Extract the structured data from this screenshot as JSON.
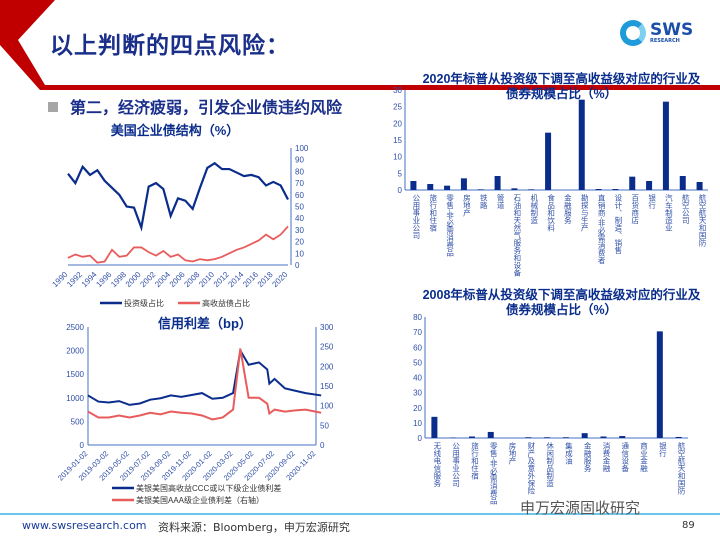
{
  "header": {
    "title": "以上判断的四点风险：",
    "logo_text": "SWS",
    "logo_sub": "RESEARCH"
  },
  "bullet": "第二，经济疲弱，引发企业债违约风险",
  "footer": {
    "url": "www.swsresearch.com",
    "source": "资料来源：Bloomberg，申万宏源研究",
    "page": "89",
    "watermark": "申万宏源固收研究"
  },
  "colors": {
    "navy": "#0a2d8c",
    "red": "#e85c5c",
    "brand_red": "#c00000"
  },
  "chart_data": [
    {
      "type": "line",
      "title": "美国企业债结构（%）",
      "ylim": [
        0,
        100
      ],
      "yticks": [
        "0",
        "10",
        "20",
        "30",
        "40",
        "50",
        "60",
        "70",
        "80",
        "90",
        "100"
      ],
      "y_axis": "right",
      "x": [
        1990,
        1991,
        1992,
        1993,
        1994,
        1995,
        1996,
        1997,
        1998,
        1999,
        2000,
        2001,
        2002,
        2003,
        2004,
        2005,
        2006,
        2007,
        2008,
        2009,
        2010,
        2011,
        2012,
        2013,
        2014,
        2015,
        2016,
        2017,
        2018,
        2019,
        2020
      ],
      "xticks": [
        "1990",
        "1992",
        "1994",
        "1996",
        "1998",
        "2000",
        "2002",
        "2004",
        "2006",
        "2008",
        "2010",
        "2012",
        "2014",
        "2016",
        "2018",
        "2020"
      ],
      "series": [
        {
          "name": "投资级占比",
          "color": "#0a2d8c",
          "values": [
            78,
            70,
            84,
            77,
            81,
            72,
            66,
            60,
            50,
            49,
            32,
            67,
            70,
            65,
            42,
            57,
            55,
            48,
            66,
            83,
            87,
            82,
            82,
            79,
            76,
            77,
            75,
            68,
            71,
            68,
            56
          ]
        },
        {
          "name": "高收益债占比",
          "color": "#e85c5c",
          "values": [
            6,
            9,
            7,
            8,
            2,
            3,
            13,
            7,
            8,
            15,
            15,
            11,
            8,
            12,
            7,
            9,
            4,
            3,
            5,
            4,
            5,
            7,
            10,
            13,
            15,
            18,
            21,
            26,
            22,
            26,
            33
          ]
        }
      ]
    },
    {
      "type": "line",
      "title": "信用利差（bp）",
      "ylim": [
        0,
        2500
      ],
      "y2lim": [
        0,
        300
      ],
      "yticks": [
        "0",
        "500",
        "1000",
        "1500",
        "2000",
        "2500"
      ],
      "y2ticks": [
        "0",
        "50",
        "100",
        "150",
        "200",
        "250",
        "300"
      ],
      "xticks": [
        "2019-01-02",
        "2019-03-02",
        "2019-05-02",
        "2019-07-02",
        "2019-09-02",
        "2019-11-02",
        "2020-01-02",
        "2020-03-02",
        "2020-05-02",
        "2020-07-02",
        "2020-09-02",
        "2020-11-02"
      ],
      "x_months": [
        0,
        1,
        2,
        3,
        4,
        5,
        6,
        7,
        8,
        9,
        10,
        11,
        12,
        13,
        14,
        14.7,
        15.5,
        16.5,
        17.3,
        17.5,
        18,
        19,
        20,
        21,
        22.5
      ],
      "series": [
        {
          "name": "美银美国高收益CCC或以下级企业债利差",
          "color": "#0a2d8c",
          "axis": "left",
          "values": [
            1050,
            920,
            900,
            930,
            850,
            880,
            960,
            990,
            1050,
            1020,
            1060,
            1100,
            980,
            1000,
            1100,
            2000,
            1700,
            1750,
            1600,
            1300,
            1400,
            1200,
            1150,
            1100,
            1050
          ]
        },
        {
          "name": "美银美国AAA级企业债利差（右轴）",
          "color": "#e85c5c",
          "axis": "right",
          "values": [
            85,
            70,
            70,
            75,
            70,
            75,
            82,
            78,
            85,
            82,
            80,
            75,
            65,
            70,
            90,
            245,
            120,
            120,
            105,
            80,
            90,
            85,
            88,
            90,
            82
          ]
        }
      ]
    },
    {
      "type": "bar",
      "title": "2020年标普从投资级下调至高收益级对应的行业及债券规模占比（%）",
      "ylim": [
        0,
        30
      ],
      "yticks": [
        "0",
        "5",
        "10",
        "15",
        "20",
        "25",
        "30"
      ],
      "categories": [
        "公用事业公司",
        "旅行和住宿",
        "零售-非必需消费品",
        "房地产",
        "铁路",
        "管道",
        "石油和天然气服务和设备",
        "机械制造",
        "食品和饮料",
        "金融服务",
        "勘探与生产",
        "直销商-非必需消费者",
        "设计、制造、销售",
        "百货商店",
        "银行",
        "汽车制造业",
        "航空公司",
        "航空航天和国防"
      ],
      "values": [
        2.7,
        1.8,
        1.3,
        3.5,
        0.2,
        4.2,
        0.5,
        0.2,
        17.2,
        0,
        27.1,
        0.3,
        0.3,
        4.0,
        2.7,
        26.5,
        4.2,
        2.4
      ],
      "color": "#0a2d8c"
    },
    {
      "type": "bar",
      "title": "2008年标普从投资级下调至高收益级对应的行业及债券规模占比（%）",
      "ylim": [
        0,
        80
      ],
      "yticks": [
        "0",
        "10",
        "20",
        "30",
        "40",
        "50",
        "60",
        "70",
        "80"
      ],
      "categories": [
        "无线电信服务",
        "公用事业公司",
        "旅行和住宿",
        "零售-非必需消费品",
        "房地产",
        "财产及意外保险",
        "休闲制品制造",
        "集成油",
        "金融服务",
        "消费金融",
        "通信设备",
        "商业金融",
        "银行",
        "航空航天和国防"
      ],
      "values": [
        14,
        0.3,
        1,
        4,
        0,
        0.5,
        0.5,
        0.5,
        3.2,
        1,
        1.3,
        0,
        70.5,
        0.7
      ],
      "color": "#0a2d8c"
    }
  ]
}
